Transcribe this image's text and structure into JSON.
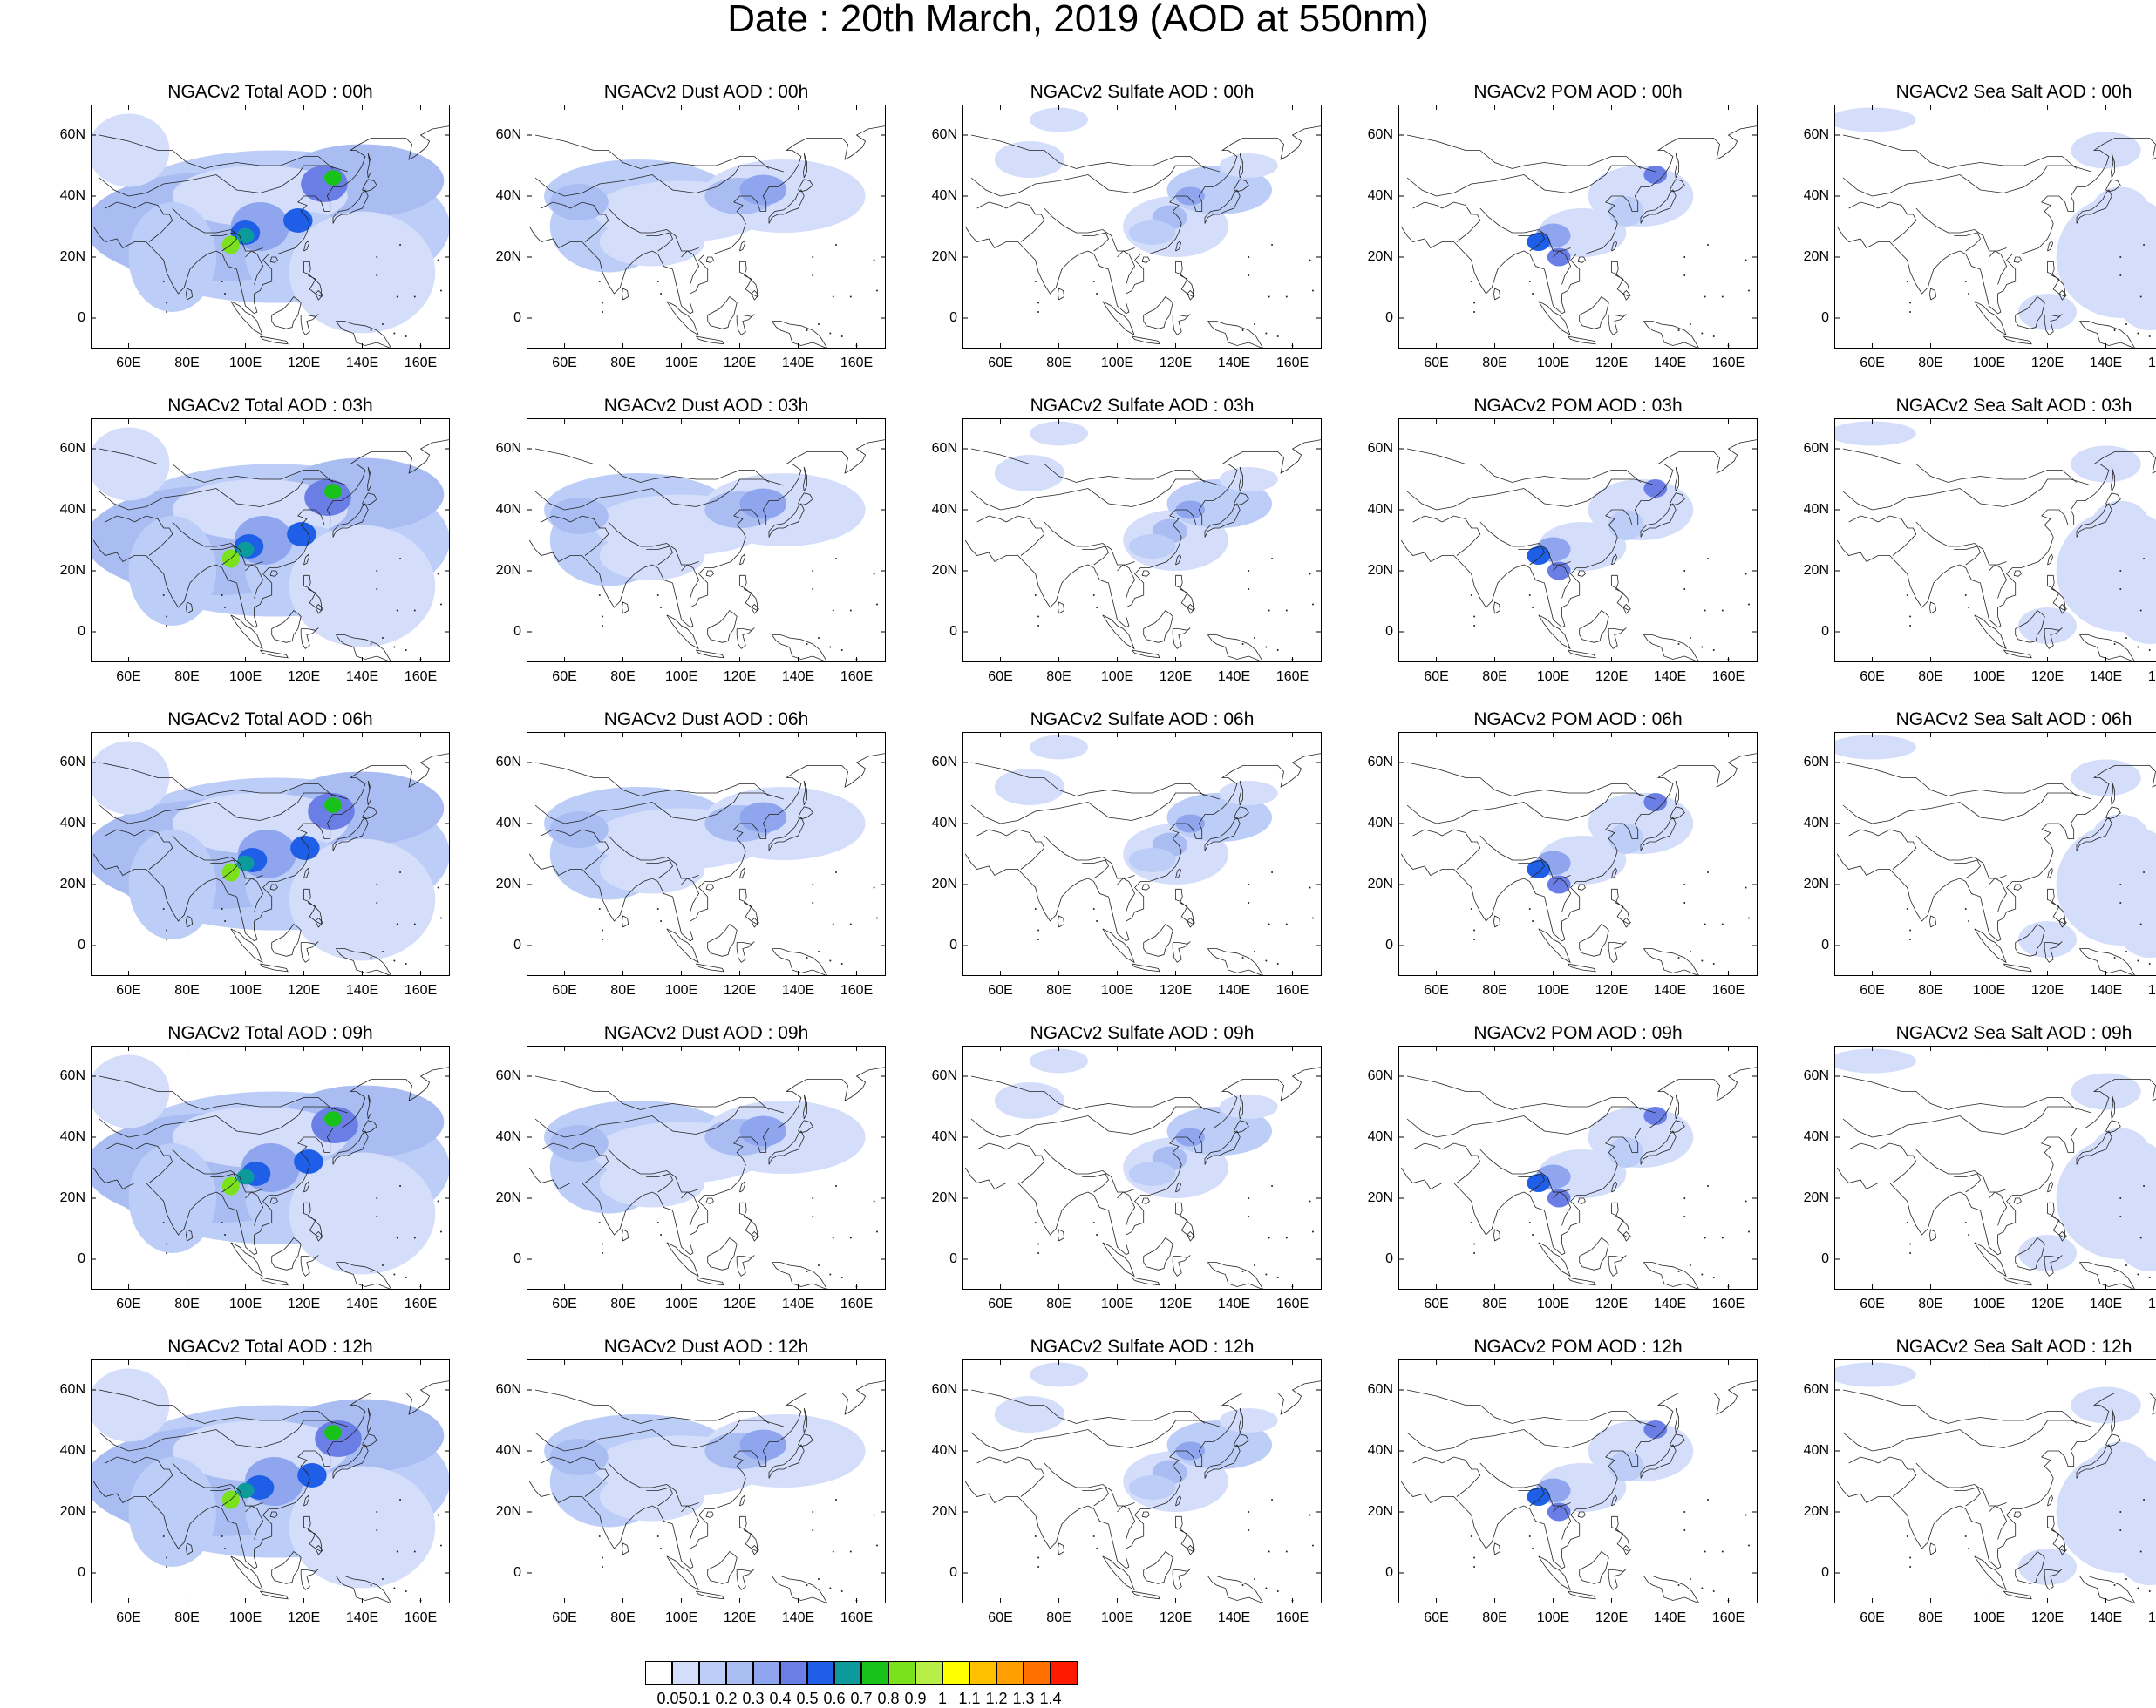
{
  "title": "Date : 20th March, 2019 (AOD at 550nm)",
  "panels": [
    {
      "title": "NGACv2 Total AOD : 00h",
      "species": "total",
      "hour": "00h"
    },
    {
      "title": "NGACv2 Dust AOD : 00h",
      "species": "dust",
      "hour": "00h"
    },
    {
      "title": "NGACv2 Sulfate AOD : 00h",
      "species": "sulfate",
      "hour": "00h"
    },
    {
      "title": "NGACv2 POM AOD : 00h",
      "species": "pom",
      "hour": "00h"
    },
    {
      "title": "NGACv2 Sea Salt AOD : 00h",
      "species": "seasalt",
      "hour": "00h"
    },
    {
      "title": "NGACv2 Total AOD : 03h",
      "species": "total",
      "hour": "03h"
    },
    {
      "title": "NGACv2 Dust AOD : 03h",
      "species": "dust",
      "hour": "03h"
    },
    {
      "title": "NGACv2 Sulfate AOD : 03h",
      "species": "sulfate",
      "hour": "03h"
    },
    {
      "title": "NGACv2 POM AOD : 03h",
      "species": "pom",
      "hour": "03h"
    },
    {
      "title": "NGACv2 Sea Salt AOD : 03h",
      "species": "seasalt",
      "hour": "03h"
    },
    {
      "title": "NGACv2 Total AOD : 06h",
      "species": "total",
      "hour": "06h"
    },
    {
      "title": "NGACv2 Dust AOD : 06h",
      "species": "dust",
      "hour": "06h"
    },
    {
      "title": "NGACv2 Sulfate AOD : 06h",
      "species": "sulfate",
      "hour": "06h"
    },
    {
      "title": "NGACv2 POM AOD : 06h",
      "species": "pom",
      "hour": "06h"
    },
    {
      "title": "NGACv2 Sea Salt AOD : 06h",
      "species": "seasalt",
      "hour": "06h"
    },
    {
      "title": "NGACv2 Total AOD : 09h",
      "species": "total",
      "hour": "09h"
    },
    {
      "title": "NGACv2 Dust AOD : 09h",
      "species": "dust",
      "hour": "09h"
    },
    {
      "title": "NGACv2 Sulfate AOD : 09h",
      "species": "sulfate",
      "hour": "09h"
    },
    {
      "title": "NGACv2 POM AOD : 09h",
      "species": "pom",
      "hour": "09h"
    },
    {
      "title": "NGACv2 Sea Salt  AOD : 09h",
      "species": "seasalt",
      "hour": "09h"
    },
    {
      "title": "NGACv2 Total AOD  : 12h",
      "species": "total",
      "hour": "12h"
    },
    {
      "title": "NGACv2 Dust AOD : 12h",
      "species": "dust",
      "hour": "12h"
    },
    {
      "title": "NGACv2 Sulfate AOD : 12h",
      "species": "sulfate",
      "hour": "12h"
    },
    {
      "title": "NGACv2 POM  AOD : 12h",
      "species": "pom",
      "hour": "12h"
    },
    {
      "title": "NGACv2 Sea Salt  AOD : 12h",
      "species": "seasalt",
      "hour": "12h"
    }
  ],
  "lat_ticks": [
    "60N",
    "40N",
    "20N",
    "0"
  ],
  "lon_ticks": [
    "60E",
    "80E",
    "100E",
    "120E",
    "140E",
    "160E"
  ],
  "lat_values": [
    60,
    40,
    20,
    0
  ],
  "lon_values": [
    60,
    80,
    100,
    120,
    140,
    160
  ],
  "map_extent": {
    "lon": [
      47,
      170
    ],
    "lat": [
      -10,
      70
    ]
  },
  "colorbar": {
    "labels": [
      "0.05",
      "0.1",
      "0.2",
      "0.3",
      "0.4",
      "0.5",
      "0.6",
      "0.7",
      "0.8",
      "0.9",
      "1",
      "1.1",
      "1.2",
      "1.3",
      "1.4"
    ],
    "colors": [
      "#ffffff",
      "#d4defb",
      "#bccdf7",
      "#a9bdf3",
      "#8fa6ef",
      "#6b7ee6",
      "#1f5fe8",
      "#0c9a9a",
      "#19c219",
      "#7be11a",
      "#b6f046",
      "#ffff00",
      "#ffc000",
      "#ffa000",
      "#ff7000",
      "#ff1a00"
    ]
  }
}
